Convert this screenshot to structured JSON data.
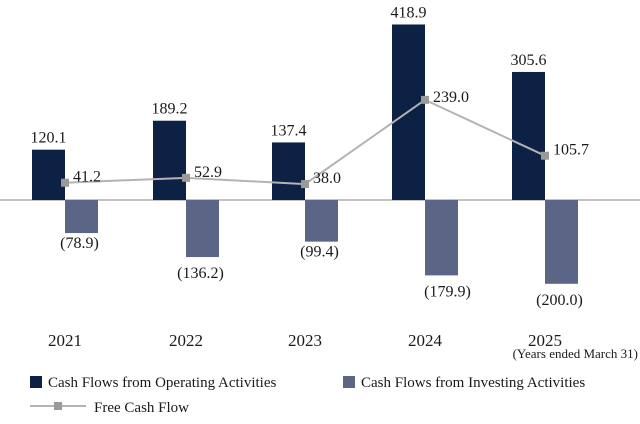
{
  "chart_data": {
    "type": "bar",
    "categories": [
      "2021",
      "2022",
      "2023",
      "2024",
      "2025"
    ],
    "series": [
      {
        "name": "Cash Flows from Operating Activities",
        "kind": "bar",
        "color": "#0d2145",
        "values": [
          120.1,
          189.2,
          137.4,
          418.9,
          305.6
        ],
        "labels": [
          "120.1",
          "189.2",
          "137.4",
          "418.9",
          "305.6"
        ]
      },
      {
        "name": "Cash Flows from Investing Activities",
        "kind": "bar",
        "color": "#5b6585",
        "values": [
          -78.9,
          -136.2,
          -99.4,
          -179.9,
          -200.0
        ],
        "labels": [
          "(78.9)",
          "(136.2)",
          "(99.4)",
          "(179.9)",
          "(200.0)"
        ]
      },
      {
        "name": "Free Cash Flow",
        "kind": "line",
        "color": "#b3b3b3",
        "marker_color": "#9a9a9a",
        "values": [
          41.2,
          52.9,
          38.0,
          239.0,
          105.7
        ],
        "labels": [
          "41.2",
          "52.9",
          "38.0",
          "239.0",
          "105.7"
        ]
      }
    ],
    "axis_note": "(Years ended March 31)",
    "grid": false,
    "legend_position": "bottom"
  }
}
